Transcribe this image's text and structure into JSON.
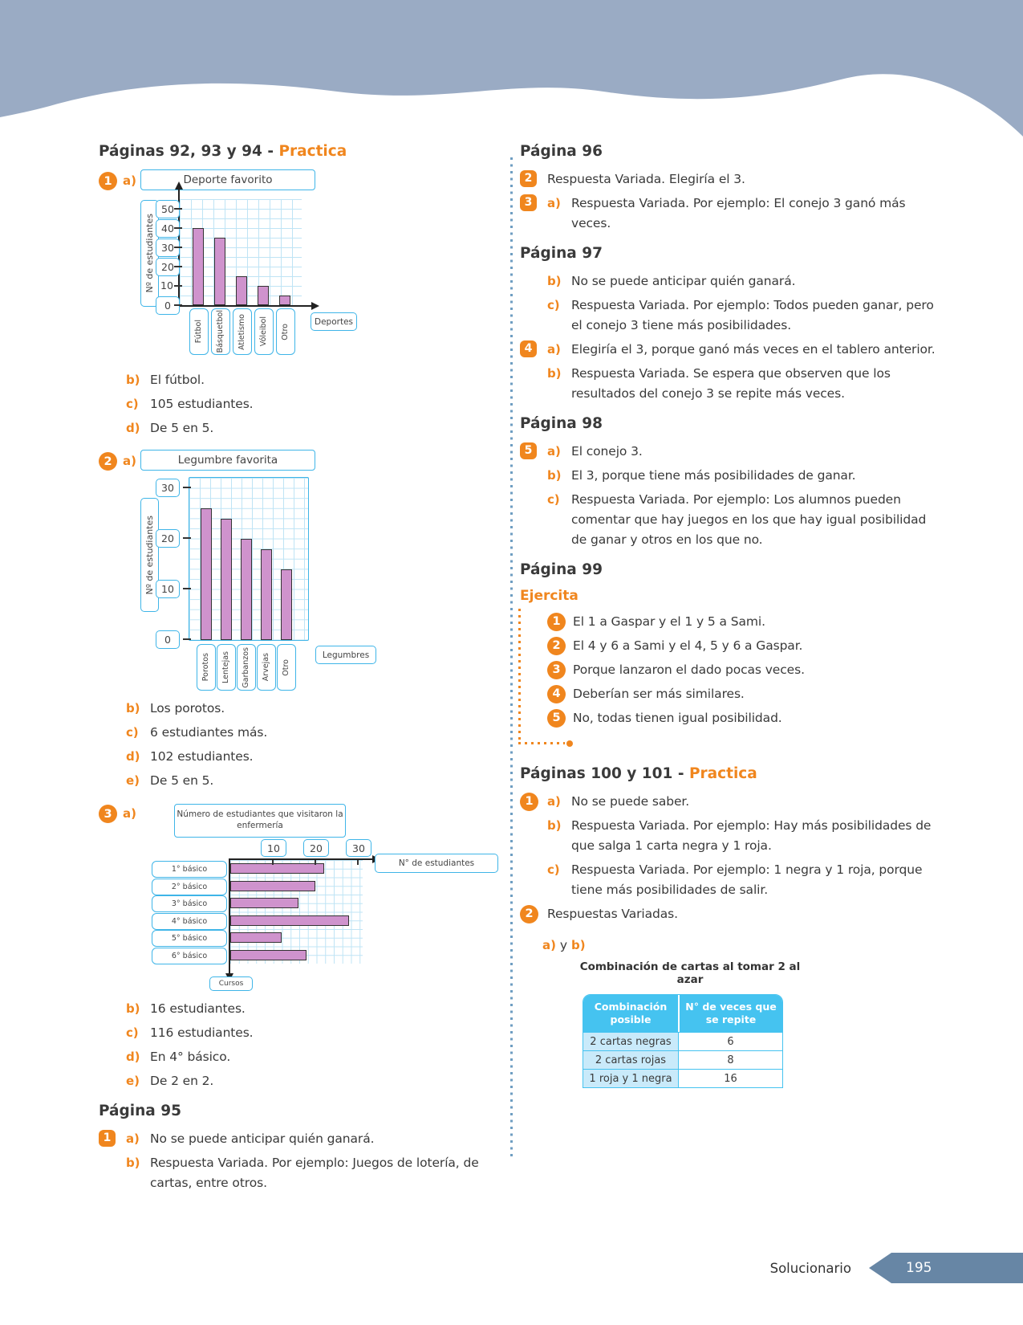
{
  "colors": {
    "banner": "#9aabc4",
    "accent": "#f0861e",
    "text": "#3a3a3a",
    "chart_border": "#3fb5e8",
    "bar_fill": "#cf93cd",
    "grid": "#bfe4f5",
    "table_header": "#45c3f0",
    "table_row_bg": "#c9eafa",
    "divider": "#6f9ec2",
    "tag": "#6786a5"
  },
  "footer": {
    "label": "Solucionario",
    "page_number": "195"
  },
  "left": {
    "heading": {
      "text": "Páginas 92, 93 y 94 - ",
      "accent": "Practica"
    },
    "ex1": {
      "number": "1",
      "shape": "circle",
      "letter": "a)",
      "answers": [
        {
          "letter": "b)",
          "text": "El fútbol."
        },
        {
          "letter": "c)",
          "text": "105 estudiantes."
        },
        {
          "letter": "d)",
          "text": "De 5 en 5."
        }
      ]
    },
    "ex2": {
      "number": "2",
      "shape": "circle",
      "letter": "a)",
      "answers": [
        {
          "letter": "b)",
          "text": "Los porotos."
        },
        {
          "letter": "c)",
          "text": "6 estudiantes más."
        },
        {
          "letter": "d)",
          "text": "102 estudiantes."
        },
        {
          "letter": "e)",
          "text": "De 5 en 5."
        }
      ]
    },
    "ex3": {
      "number": "3",
      "shape": "circle",
      "letter": "a)",
      "answers": [
        {
          "letter": "b)",
          "text": "16 estudiantes."
        },
        {
          "letter": "c)",
          "text": "116 estudiantes."
        },
        {
          "letter": "d)",
          "text": "En 4° básico."
        },
        {
          "letter": "e)",
          "text": "De 2 en 2."
        }
      ]
    },
    "p95": {
      "heading": "Página 95",
      "items": [
        {
          "badge": "1",
          "shape": "square",
          "letter": "a)",
          "text": "No se puede anticipar quién ganará."
        },
        {
          "letter": "b)",
          "text": "Respuesta Variada. Por ejemplo: Juegos de lotería, de cartas, entre otros."
        }
      ]
    }
  },
  "right": {
    "s96": {
      "heading": "Página 96",
      "items": [
        {
          "badge": "2",
          "shape": "square",
          "text": "Respuesta Variada. Elegiría el 3."
        },
        {
          "badge": "3",
          "shape": "square",
          "letter": "a)",
          "text": "Respuesta Variada. Por ejemplo: El conejo 3 ganó más veces."
        }
      ]
    },
    "s97": {
      "heading": "Página 97",
      "items": [
        {
          "letter": "b)",
          "text": "No se puede anticipar quién ganará."
        },
        {
          "letter": "c)",
          "text": "Respuesta Variada. Por ejemplo: Todos pueden ganar, pero el conejo 3 tiene más posibilidades."
        },
        {
          "badge": "4",
          "shape": "square",
          "letter": "a)",
          "text": "Elegiría el 3, porque ganó más veces en el tablero anterior."
        },
        {
          "letter": "b)",
          "text": "Respuesta Variada. Se espera que observen que los resultados del conejo 3 se repite más veces."
        }
      ]
    },
    "s98": {
      "heading": "Página 98",
      "items": [
        {
          "badge": "5",
          "shape": "square",
          "letter": "a)",
          "text": "El conejo 3."
        },
        {
          "letter": "b)",
          "text": "El 3, porque tiene más posibilidades de ganar."
        },
        {
          "letter": "c)",
          "text": "Respuesta Variada. Por ejemplo: Los alumnos pueden comentar que hay juegos en los que hay igual posibilidad de ganar y otros en los que no."
        }
      ]
    },
    "s99": {
      "heading": "Página 99",
      "subheading": "Ejercita",
      "items": [
        {
          "badge": "1",
          "shape": "circle",
          "text": "El 1 a Gaspar y el 1 y 5 a Sami."
        },
        {
          "badge": "2",
          "shape": "circle",
          "text": "El 4 y 6 a Sami y el 4, 5 y 6 a Gaspar."
        },
        {
          "badge": "3",
          "shape": "circle",
          "text": "Porque lanzaron el dado pocas veces."
        },
        {
          "badge": "4",
          "shape": "circle",
          "text": "Deberían ser más similares."
        },
        {
          "badge": "5",
          "shape": "circle",
          "text": "No, todas tienen igual posibilidad."
        }
      ]
    },
    "s100": {
      "heading": "Páginas 100 y 101 - ",
      "heading_accent": "Practica",
      "items": [
        {
          "badge": "1",
          "shape": "circle",
          "letter": "a)",
          "text": "No se puede saber."
        },
        {
          "letter": "b)",
          "text": "Respuesta Variada. Por ejemplo: Hay más posibilidades de que salga 1 carta negra y 1 roja."
        },
        {
          "letter": "c)",
          "text": "Respuesta Variada. Por ejemplo: 1 negra y 1 roja, porque tiene más posibilidades de salir."
        },
        {
          "badge": "2",
          "shape": "circle",
          "text": "Respuestas Variadas."
        }
      ],
      "ab": {
        "a": "a)",
        "y": " y ",
        "b": "b)"
      }
    },
    "table": {
      "title": "Combinación de cartas al tomar 2 al azar",
      "headers": [
        "Combinación posible",
        "N° de veces que se repite"
      ],
      "rows": [
        [
          "2 cartas negras",
          "6"
        ],
        [
          "2 cartas rojas",
          "8"
        ],
        [
          "1 roja y 1 negra",
          "16"
        ]
      ]
    }
  },
  "chart_data": [
    {
      "id": "chart1",
      "type": "bar",
      "orientation": "vertical",
      "title": "Deporte favorito",
      "xlabel": "Deportes",
      "ylabel": "Nº de estudiantes",
      "categories": [
        "Fútbol",
        "Básquetbol",
        "Atletismo",
        "Vóleibol",
        "Otro"
      ],
      "values": [
        40,
        35,
        15,
        10,
        5
      ],
      "yticks": [
        0,
        10,
        20,
        30,
        40,
        50
      ],
      "unboxed_ticks": [
        10
      ],
      "ylim": [
        0,
        55
      ],
      "grid": true
    },
    {
      "id": "chart2",
      "type": "bar",
      "orientation": "vertical",
      "title": "Legumbre favorita",
      "xlabel": "Legumbres",
      "ylabel": "Nº de estudiantes",
      "categories": [
        "Porotos",
        "Lentejas",
        "Garbanzos",
        "Arvejas",
        "Otro"
      ],
      "values": [
        26,
        24,
        20,
        18,
        14
      ],
      "yticks": [
        0,
        10,
        20,
        30
      ],
      "unboxed_ticks": [],
      "ylim": [
        0,
        32
      ],
      "grid": true
    },
    {
      "id": "chart3",
      "type": "bar",
      "orientation": "horizontal",
      "title": "Número de estudiantes que visitaron la enfermería",
      "xlabel": "N° de estudiantes",
      "ylabel": "Cursos",
      "categories": [
        "1° básico",
        "2° básico",
        "3° básico",
        "4° básico",
        "5° básico",
        "6° básico"
      ],
      "values": [
        22,
        20,
        16,
        28,
        12,
        18
      ],
      "xticks": [
        10,
        20,
        30
      ],
      "xlim": [
        0,
        32
      ],
      "grid": true
    }
  ]
}
